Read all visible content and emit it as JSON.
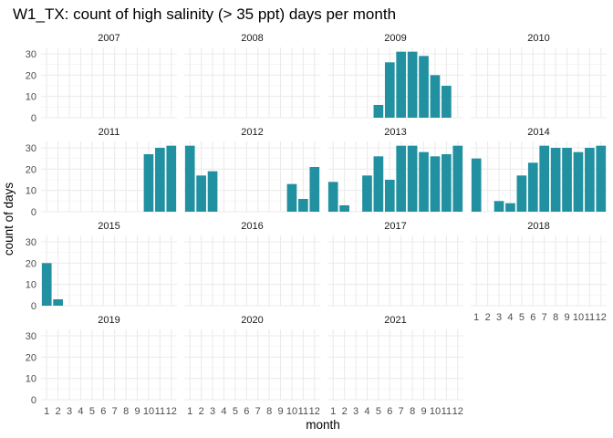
{
  "chart_data": {
    "type": "bar",
    "title": "W1_TX: count of high salinity (> 35 ppt) days per month",
    "xlabel": "month",
    "ylabel": "count of days",
    "ylim": [
      0,
      33
    ],
    "y_ticks": [
      0,
      10,
      20,
      30
    ],
    "x_ticks": [
      1,
      2,
      3,
      4,
      5,
      6,
      7,
      8,
      9,
      10,
      11,
      12
    ],
    "bar_color": "#2190a0",
    "grid": true,
    "facet_columns": 4,
    "panels": [
      {
        "label": "2007",
        "values": [
          0,
          0,
          0,
          0,
          0,
          0,
          0,
          0,
          0,
          0,
          0,
          0
        ]
      },
      {
        "label": "2008",
        "values": [
          0,
          0,
          0,
          0,
          0,
          0,
          0,
          0,
          0,
          0,
          0,
          0
        ]
      },
      {
        "label": "2009",
        "values": [
          0,
          0,
          0,
          0,
          6,
          26,
          31,
          31,
          29,
          20,
          15,
          0
        ]
      },
      {
        "label": "2010",
        "values": [
          0,
          0,
          0,
          0,
          0,
          0,
          0,
          0,
          0,
          0,
          0,
          0
        ]
      },
      {
        "label": "2011",
        "values": [
          0,
          0,
          0,
          0,
          0,
          0,
          0,
          0,
          0,
          27,
          30,
          31
        ]
      },
      {
        "label": "2012",
        "values": [
          31,
          17,
          19,
          0,
          0,
          0,
          0,
          0,
          0,
          13,
          6,
          21
        ]
      },
      {
        "label": "2013",
        "values": [
          14,
          3,
          0,
          17,
          26,
          15,
          31,
          31,
          28,
          26,
          27,
          31
        ]
      },
      {
        "label": "2014",
        "values": [
          25,
          0,
          5,
          4,
          17,
          23,
          31,
          30,
          30,
          28,
          30,
          31
        ]
      },
      {
        "label": "2015",
        "values": [
          20,
          3,
          0,
          0,
          0,
          0,
          0,
          0,
          0,
          0,
          0,
          0
        ]
      },
      {
        "label": "2016",
        "values": [
          0,
          0,
          0,
          0,
          0,
          0,
          0,
          0,
          0,
          0,
          0,
          0
        ]
      },
      {
        "label": "2017",
        "values": [
          0,
          0,
          0,
          0,
          0,
          0,
          0,
          0,
          0,
          0,
          0,
          0
        ]
      },
      {
        "label": "2018",
        "values": [
          0,
          0,
          0,
          0,
          0,
          0,
          0,
          0,
          0,
          0,
          0,
          0
        ]
      },
      {
        "label": "2019",
        "values": [
          0,
          0,
          0,
          0,
          0,
          0,
          0,
          0,
          0,
          0,
          0,
          0
        ]
      },
      {
        "label": "2020",
        "values": [
          0,
          0,
          0,
          0,
          0,
          0,
          0,
          0,
          0,
          0,
          0,
          0
        ]
      },
      {
        "label": "2021",
        "values": [
          0,
          0,
          0,
          0,
          0,
          0,
          0,
          0,
          0,
          0,
          0,
          0
        ]
      }
    ]
  }
}
